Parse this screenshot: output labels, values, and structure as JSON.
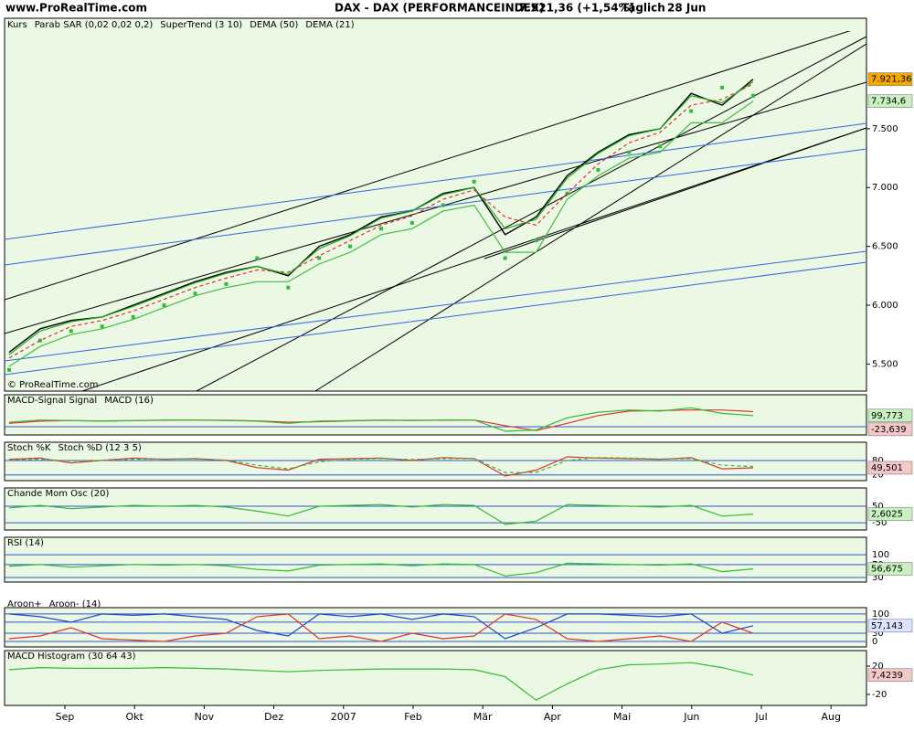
{
  "header": {
    "site": "www.ProRealTime.com",
    "title": "DAX - DAX (PERFORMANCEINDEX)",
    "quote": "7.921,36 (+1,54%)",
    "period": "Täglich",
    "date": "28 Jun",
    "watermark": "© ProRealTime.com"
  },
  "time_axis": {
    "categories": [
      "Sep",
      "Okt",
      "Nov",
      "Dez",
      "2007",
      "Feb",
      "Mär",
      "Apr",
      "Mai",
      "Jun",
      "Jul",
      "Aug"
    ]
  },
  "chart_data": [
    {
      "type": "line",
      "ylim": [
        5270,
        8330
      ],
      "grid": false,
      "yticks": [
        {
          "value": 5500,
          "label": "5.500"
        },
        {
          "value": 6000,
          "label": "6.000"
        },
        {
          "value": 6500,
          "label": "6.500"
        },
        {
          "value": 7000,
          "label": "7.000"
        },
        {
          "value": 7500,
          "label": "7.500"
        }
      ],
      "series": [
        {
          "name": "Kurs",
          "color": "#000000",
          "style": "line",
          "values": [
            5600,
            5800,
            5870,
            5900,
            6000,
            6100,
            6200,
            6280,
            6330,
            6250,
            6500,
            6600,
            6750,
            6800,
            6950,
            7000,
            6600,
            6750,
            7100,
            7300,
            7450,
            7500,
            7800,
            7700,
            7921.36
          ]
        },
        {
          "name": "Parab SAR (0,02 0,02 0,2)",
          "color": "#33bb33",
          "style": "dots",
          "values": [
            5450,
            5700,
            5780,
            5820,
            5900,
            6000,
            6100,
            6180,
            6400,
            6150,
            6400,
            6500,
            6650,
            6700,
            6850,
            7050,
            6400,
            6550,
            6950,
            7150,
            7300,
            7350,
            7650,
            7850,
            7780
          ]
        },
        {
          "name": "SuperTrend (3 10)",
          "color": "#44bb44",
          "style": "line",
          "values": [
            5480,
            5650,
            5750,
            5800,
            5880,
            5980,
            6080,
            6150,
            6200,
            6200,
            6350,
            6450,
            6600,
            6650,
            6800,
            6850,
            6450,
            6450,
            6900,
            7100,
            7250,
            7300,
            7550,
            7550,
            7734.6
          ]
        },
        {
          "name": "DEMA (50)",
          "color": "#dd3333",
          "style": "dashed",
          "values": [
            5550,
            5700,
            5820,
            5870,
            5950,
            6050,
            6150,
            6230,
            6300,
            6280,
            6420,
            6550,
            6680,
            6760,
            6900,
            6980,
            6750,
            6680,
            6950,
            7200,
            7380,
            7470,
            7700,
            7750,
            7880
          ]
        },
        {
          "name": "DEMA (21)",
          "color": "#22aa22",
          "style": "line",
          "values": [
            5580,
            5780,
            5860,
            5900,
            5990,
            6090,
            6190,
            6270,
            6330,
            6260,
            6480,
            6590,
            6740,
            6800,
            6940,
            7000,
            6650,
            6730,
            7080,
            7290,
            7440,
            7500,
            7780,
            7720,
            7900
          ]
        }
      ],
      "badges": [
        {
          "value": 7921.36,
          "label": "7.921,36",
          "color": "#f5a800"
        },
        {
          "value": 7734.6,
          "label": "7.734,6",
          "color": "#c8f0c0"
        }
      ]
    },
    {
      "type": "line",
      "ylim": [
        -74,
        287
      ],
      "grid": true,
      "yticks": [
        0
      ],
      "series": [
        {
          "name": "MACD-Signal Signal",
          "color": "#dd3333",
          "style": "line",
          "values": [
            30,
            50,
            55,
            52,
            54,
            58,
            60,
            57,
            52,
            40,
            45,
            52,
            58,
            57,
            58,
            60,
            10,
            -35,
            30,
            100,
            140,
            145,
            150,
            150,
            135
          ]
        },
        {
          "name": "MACD (16)",
          "color": "#33bb33",
          "style": "line",
          "values": [
            40,
            60,
            55,
            50,
            55,
            60,
            60,
            55,
            50,
            30,
            50,
            55,
            60,
            55,
            60,
            60,
            -40,
            -30,
            80,
            130,
            150,
            140,
            170,
            120,
            99.773
          ]
        }
      ],
      "badges": [
        {
          "value": 99.773,
          "label": "99,773",
          "color": "#c8f0c0"
        },
        {
          "value": -23.639,
          "label": "-23,639",
          "color": "#f5c8c8"
        }
      ]
    },
    {
      "type": "line",
      "ylim": [
        -4,
        156
      ],
      "grid": true,
      "yticks": [
        20,
        80
      ],
      "series": [
        {
          "name": "Stoch %K",
          "color": "#dd3333",
          "style": "line",
          "values": [
            85,
            90,
            70,
            80,
            90,
            85,
            88,
            80,
            50,
            40,
            85,
            88,
            90,
            80,
            92,
            88,
            15,
            40,
            95,
            90,
            88,
            85,
            92,
            45,
            49.501
          ]
        },
        {
          "name": "Stoch %D (12 3 5)",
          "color": "#33bb33",
          "style": "dashed",
          "values": [
            82,
            85,
            78,
            80,
            85,
            86,
            86,
            82,
            60,
            45,
            75,
            85,
            88,
            84,
            88,
            88,
            30,
            30,
            80,
            92,
            90,
            86,
            88,
            60,
            55
          ]
        }
      ],
      "badges": [
        {
          "value": 49.501,
          "label": "49,501",
          "color": "#f5c8c8"
        }
      ]
    },
    {
      "type": "line",
      "ylim": [
        -94,
        161
      ],
      "grid": true,
      "yticks": [
        -50,
        50
      ],
      "series": [
        {
          "name": "Chande Mom Osc (20)",
          "color": "#33bb33",
          "style": "line",
          "values": [
            40,
            55,
            35,
            45,
            55,
            50,
            55,
            45,
            20,
            -10,
            50,
            55,
            60,
            45,
            60,
            55,
            -60,
            -40,
            60,
            55,
            50,
            45,
            55,
            -10,
            2.6025
          ]
        }
      ],
      "badges": [
        {
          "value": 2.6025,
          "label": "2,6025",
          "color": "#c8f0c0"
        }
      ]
    },
    {
      "type": "line",
      "ylim": [
        16,
        154
      ],
      "grid": true,
      "yticks": [
        30,
        70,
        100
      ],
      "series": [
        {
          "name": "RSI (14)",
          "color": "#33bb33",
          "style": "line",
          "values": [
            65,
            70,
            62,
            66,
            70,
            68,
            70,
            66,
            55,
            50,
            68,
            70,
            72,
            66,
            72,
            70,
            35,
            45,
            74,
            72,
            70,
            68,
            72,
            48,
            56.675
          ]
        }
      ],
      "badges": [
        {
          "value": 56.675,
          "label": "56,675",
          "color": "#c8f0c0"
        }
      ]
    },
    {
      "type": "line",
      "ylim": [
        -20,
        123
      ],
      "grid": true,
      "yticks": [
        0,
        30,
        70,
        100
      ],
      "series": [
        {
          "name": "Aroon+",
          "color": "#2244cc",
          "style": "line",
          "values": [
            100,
            90,
            70,
            100,
            95,
            100,
            90,
            80,
            40,
            20,
            100,
            90,
            100,
            80,
            100,
            90,
            10,
            50,
            100,
            100,
            95,
            90,
            100,
            30,
            57.143
          ]
        },
        {
          "name": "Aroon- (14)",
          "color": "#dd3333",
          "style": "line",
          "values": [
            10,
            20,
            50,
            10,
            5,
            0,
            20,
            30,
            90,
            100,
            10,
            20,
            0,
            30,
            10,
            20,
            100,
            80,
            10,
            0,
            10,
            20,
            0,
            70,
            30
          ]
        }
      ],
      "badges": [
        {
          "value": 57.143,
          "label": "57,143",
          "color": "#dde4ff"
        }
      ]
    },
    {
      "type": "line",
      "ylim": [
        -35.5,
        42
      ],
      "grid": false,
      "yticks": [
        -20,
        20
      ],
      "series": [
        {
          "name": "MACD Histogram (30 64 43)",
          "color": "#33bb33",
          "style": "line",
          "values": [
            15,
            18,
            17,
            17,
            17,
            18,
            17,
            16,
            14,
            12,
            14,
            15,
            16,
            16,
            16,
            15,
            5,
            -28,
            -5,
            15,
            22,
            23,
            25,
            18,
            7.4239
          ]
        }
      ],
      "badges": [
        {
          "value": 7.4239,
          "label": "7,4239",
          "color": "#f5c8c8"
        }
      ]
    }
  ]
}
